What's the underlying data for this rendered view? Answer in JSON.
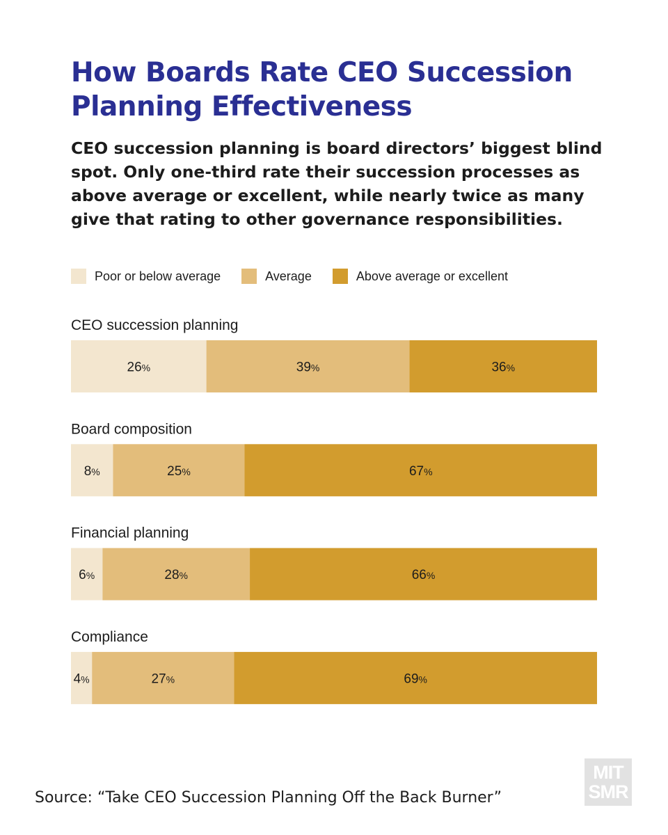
{
  "title": "How Boards Rate CEO Succession Planning Effectiveness",
  "subtitle": "CEO succession planning is board directors’ biggest blind spot. Only one-third rate their succession processes as above average or excellent, while nearly twice as many give that rating to other governance responsibilities.",
  "source": "Source: “Take CEO Succession Planning Off the Back Burner”",
  "logo": {
    "line1": "MIT",
    "line2": "SMR"
  },
  "colors": {
    "poor": "#f3e6cf",
    "average": "#e3bd7b",
    "above": "#d29c2e",
    "title": "#2a2f93"
  },
  "legend": [
    {
      "label": "Poor or below average",
      "color": "#f3e6cf"
    },
    {
      "label": "Average",
      "color": "#e3bd7b"
    },
    {
      "label": "Above average or excellent",
      "color": "#d29c2e"
    }
  ],
  "chart_data": {
    "type": "bar",
    "orientation": "horizontal-stacked",
    "categories": [
      "CEO succession planning",
      "Board composition",
      "Financial planning",
      "Compliance"
    ],
    "series": [
      {
        "name": "Poor or below average",
        "values": [
          26,
          8,
          6,
          4
        ]
      },
      {
        "name": "Average",
        "values": [
          39,
          25,
          28,
          27
        ]
      },
      {
        "name": "Above average or excellent",
        "values": [
          36,
          67,
          66,
          69
        ]
      }
    ],
    "unit": "%",
    "legend_position": "top-left",
    "grid": false
  }
}
